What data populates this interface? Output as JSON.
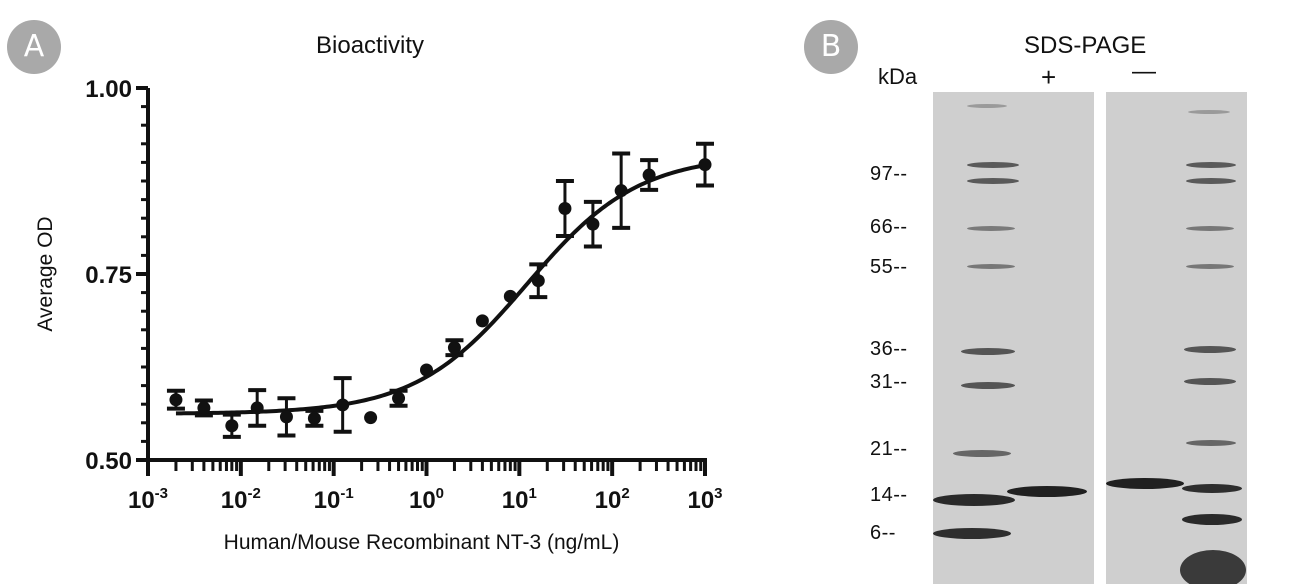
{
  "panel_a": {
    "badge": "A",
    "chart_data": {
      "type": "scatter",
      "title": "Bioactivity",
      "xlabel": "Human/Mouse Recombinant NT-3 (ng/mL)",
      "ylabel": "Average OD",
      "xscale": "log",
      "xlim": [
        0.001,
        1000
      ],
      "ylim": [
        0.5,
        1.0
      ],
      "yticks": [
        "0.50",
        "0.75",
        "1.00"
      ],
      "xticks": [
        {
          "base": "10",
          "exp": "-3"
        },
        {
          "base": "10",
          "exp": "-2"
        },
        {
          "base": "10",
          "exp": "-1"
        },
        {
          "base": "10",
          "exp": "0"
        },
        {
          "base": "10",
          "exp": "1"
        },
        {
          "base": "10",
          "exp": "2"
        },
        {
          "base": "10",
          "exp": "3"
        }
      ],
      "series": [
        {
          "points": [
            {
              "x": 0.002,
              "y": 0.581,
              "err": 0.012
            },
            {
              "x": 0.004,
              "y": 0.57,
              "err": 0.01
            },
            {
              "x": 0.008,
              "y": 0.546,
              "err": 0.015
            },
            {
              "x": 0.015,
              "y": 0.57,
              "err": 0.024
            },
            {
              "x": 0.031,
              "y": 0.558,
              "err": 0.025
            },
            {
              "x": 0.062,
              "y": 0.556,
              "err": 0.01
            },
            {
              "x": 0.125,
              "y": 0.574,
              "err": 0.036
            },
            {
              "x": 0.25,
              "y": 0.557,
              "err": 0.0
            },
            {
              "x": 0.5,
              "y": 0.583,
              "err": 0.01
            },
            {
              "x": 1,
              "y": 0.621,
              "err": 0.0
            },
            {
              "x": 2,
              "y": 0.651,
              "err": 0.01
            },
            {
              "x": 4,
              "y": 0.687,
              "err": 0.0
            },
            {
              "x": 8,
              "y": 0.72,
              "err": 0.0
            },
            {
              "x": 16,
              "y": 0.741,
              "err": 0.022
            },
            {
              "x": 31,
              "y": 0.838,
              "err": 0.037
            },
            {
              "x": 62,
              "y": 0.817,
              "err": 0.03
            },
            {
              "x": 125,
              "y": 0.862,
              "err": 0.05
            },
            {
              "x": 250,
              "y": 0.883,
              "err": 0.02
            },
            {
              "x": 1000,
              "y": 0.897,
              "err": 0.028
            }
          ],
          "fit": {
            "bottom": 0.562,
            "top": 0.91,
            "ec50": 12,
            "hill": 0.72
          }
        }
      ]
    }
  },
  "panel_b": {
    "badge": "B",
    "title": "SDS-PAGE",
    "kda_label": "kDa",
    "lane_plus": "+",
    "lane_minus": "—",
    "markers": [
      "97--",
      "66--",
      "55--",
      "36--",
      "31--",
      "21--",
      "14--",
      "6--"
    ],
    "gel_color": "#cfcfcf"
  }
}
